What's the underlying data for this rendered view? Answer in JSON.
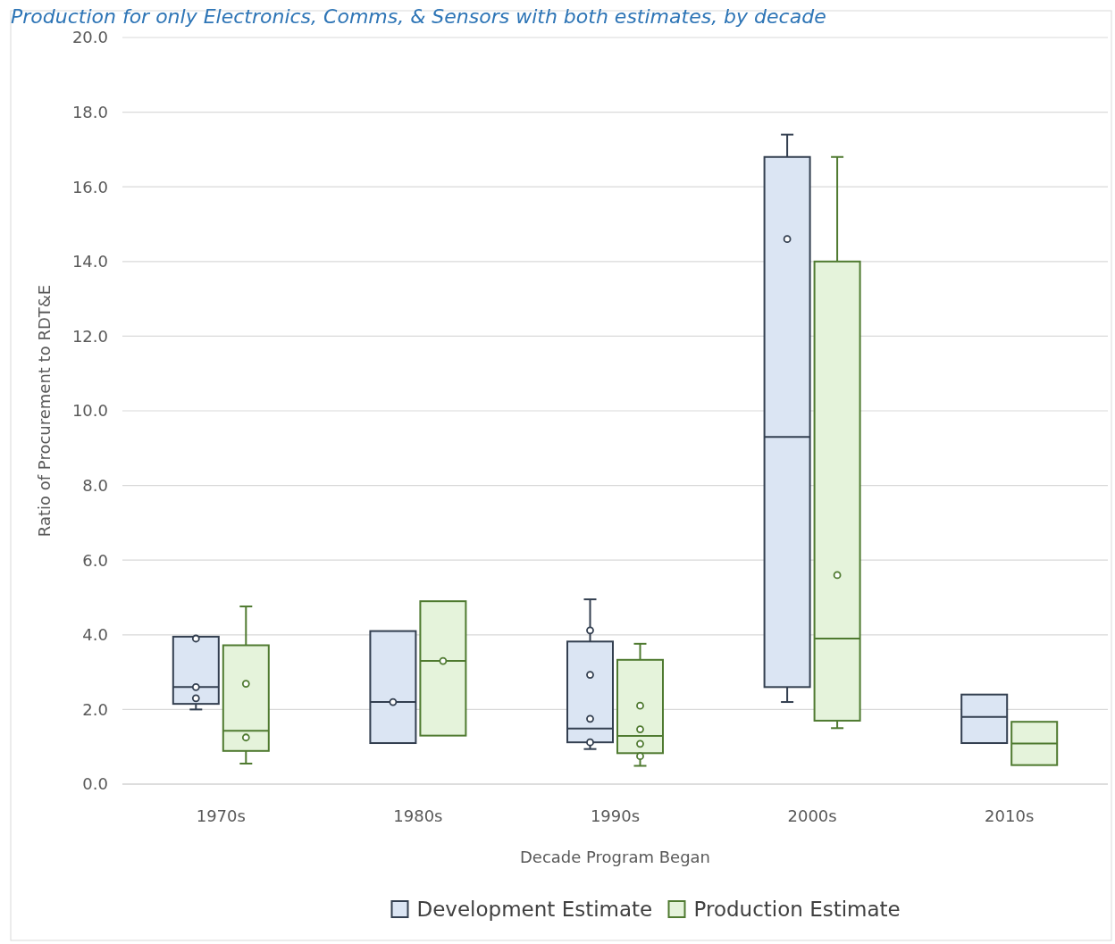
{
  "chart_data": {
    "type": "box",
    "title": "Production for only Electronics, Comms, & Sensors with both estimates, by decade",
    "xlabel": "Decade Program Began",
    "ylabel": "Ratio of Procurement to RDT&E",
    "categories": [
      "1970s",
      "1980s",
      "1990s",
      "2000s",
      "2010s"
    ],
    "ylim": [
      0,
      20
    ],
    "yticks": [
      {
        "value": 0,
        "label": "0.0"
      },
      {
        "value": 2,
        "label": "2.0"
      },
      {
        "value": 4,
        "label": "4.0"
      },
      {
        "value": 6,
        "label": "6.0"
      },
      {
        "value": 8,
        "label": "8.0"
      },
      {
        "value": 10,
        "label": "10.0"
      },
      {
        "value": 12,
        "label": "12.0"
      },
      {
        "value": 14,
        "label": "14.0"
      },
      {
        "value": 16,
        "label": "16.0"
      },
      {
        "value": 18,
        "label": "18.0"
      },
      {
        "value": 20,
        "label": "20.0"
      }
    ],
    "grid": "y",
    "legend": "bottom",
    "marker": "circle",
    "series": [
      {
        "name": "Development Estimate",
        "color": "#333f50",
        "boxes": [
          {
            "low": 2.0,
            "q1": 2.15,
            "median": 2.6,
            "q3": 3.95,
            "high": 3.95,
            "outliers": [
              3.9,
              2.6,
              2.3
            ]
          },
          {
            "low": 1.1,
            "q1": 1.1,
            "median": 2.2,
            "q3": 4.1,
            "high": 4.1,
            "outliers": [
              2.2
            ]
          },
          {
            "low": 0.94,
            "q1": 1.12,
            "median": 1.49,
            "q3": 3.82,
            "high": 4.95,
            "outliers": [
              4.12,
              2.93,
              1.75,
              1.12
            ]
          },
          {
            "low": 2.2,
            "q1": 2.6,
            "median": 9.3,
            "q3": 16.8,
            "high": 17.4,
            "outliers": [
              14.6
            ]
          },
          {
            "low": 1.1,
            "q1": 1.1,
            "median": 1.8,
            "q3": 2.4,
            "high": 2.4
          }
        ]
      },
      {
        "name": "Production Estimate",
        "color": "#4f7a30",
        "boxes": [
          {
            "low": 0.55,
            "q1": 0.89,
            "median": 1.43,
            "q3": 3.72,
            "high": 4.76,
            "outliers": [
              2.69,
              1.25
            ]
          },
          {
            "low": 1.3,
            "q1": 1.3,
            "median": 3.3,
            "q3": 4.9,
            "high": 4.9,
            "outliers": [
              3.3
            ]
          },
          {
            "low": 0.49,
            "q1": 0.83,
            "median": 1.29,
            "q3": 3.33,
            "high": 3.76,
            "outliers": [
              2.1,
              1.47,
              1.08,
              0.75
            ]
          },
          {
            "low": 1.5,
            "q1": 1.7,
            "median": 3.9,
            "q3": 14.0,
            "high": 16.8,
            "outliers": [
              5.6
            ]
          },
          {
            "low": 0.51,
            "q1": 0.51,
            "median": 1.09,
            "q3": 1.67,
            "high": 1.67
          }
        ]
      }
    ]
  }
}
